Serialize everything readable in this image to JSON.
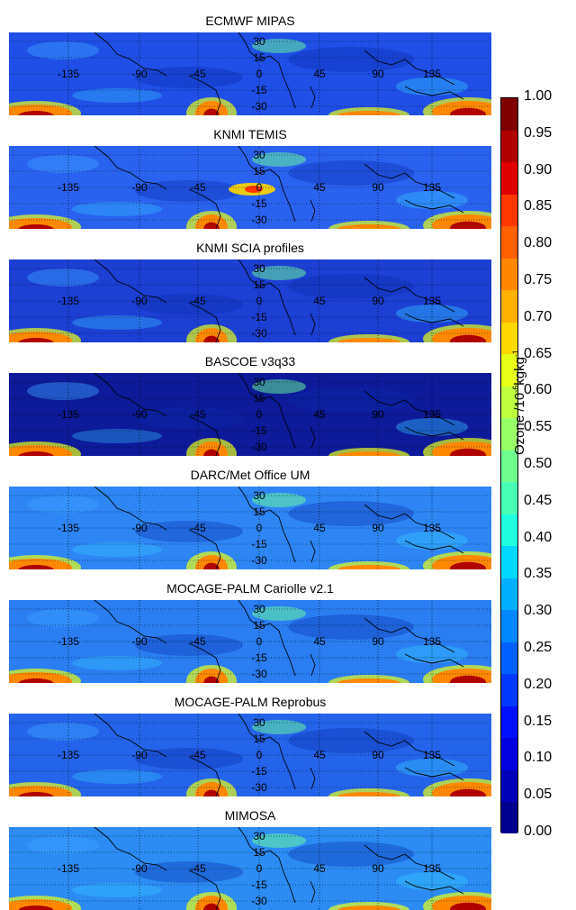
{
  "chart_data": {
    "type": "heatmap",
    "panels": [
      {
        "title": "ECMWF MIPAS"
      },
      {
        "title": "KNMI TEMIS"
      },
      {
        "title": "KNMI SCIA profiles"
      },
      {
        "title": "BASCOE v3q33"
      },
      {
        "title": "DARC/Met Office UM"
      },
      {
        "title": "MOCAGE-PALM Cariolle v2.1"
      },
      {
        "title": "MOCAGE-PALM Reprobus"
      },
      {
        "title": "MIMOSA"
      }
    ],
    "longitude_ticks": [
      "-135",
      "-90",
      "-45",
      "0",
      "45",
      "90",
      "135"
    ],
    "latitude_ticks": [
      "30",
      "15",
      "0",
      "-15",
      "-30"
    ],
    "colorbar": {
      "label": "Ozone /10",
      "label_sup": "-6",
      "label_tail": "kgkg",
      "label_sup2": "-1",
      "min": 0.0,
      "max": 1.0,
      "step": 0.05,
      "ticks": [
        "0.00",
        "0.05",
        "0.10",
        "0.15",
        "0.20",
        "0.25",
        "0.30",
        "0.35",
        "0.40",
        "0.45",
        "0.50",
        "0.55",
        "0.60",
        "0.65",
        "0.70",
        "0.75",
        "0.80",
        "0.85",
        "0.90",
        "0.95",
        "1.00"
      ],
      "colors": [
        "#00008f",
        "#0000b8",
        "#0000e0",
        "#0010ff",
        "#0038ff",
        "#0060ff",
        "#0088ff",
        "#00b0ff",
        "#00d8ff",
        "#20ffdf",
        "#48ffb7",
        "#70ff8f",
        "#98ff67",
        "#c0ff3f",
        "#e8ff17",
        "#ffd800",
        "#ffb000",
        "#ff8800",
        "#ff6000",
        "#ff3800",
        "#e00000",
        "#b00000",
        "#800000"
      ]
    }
  }
}
